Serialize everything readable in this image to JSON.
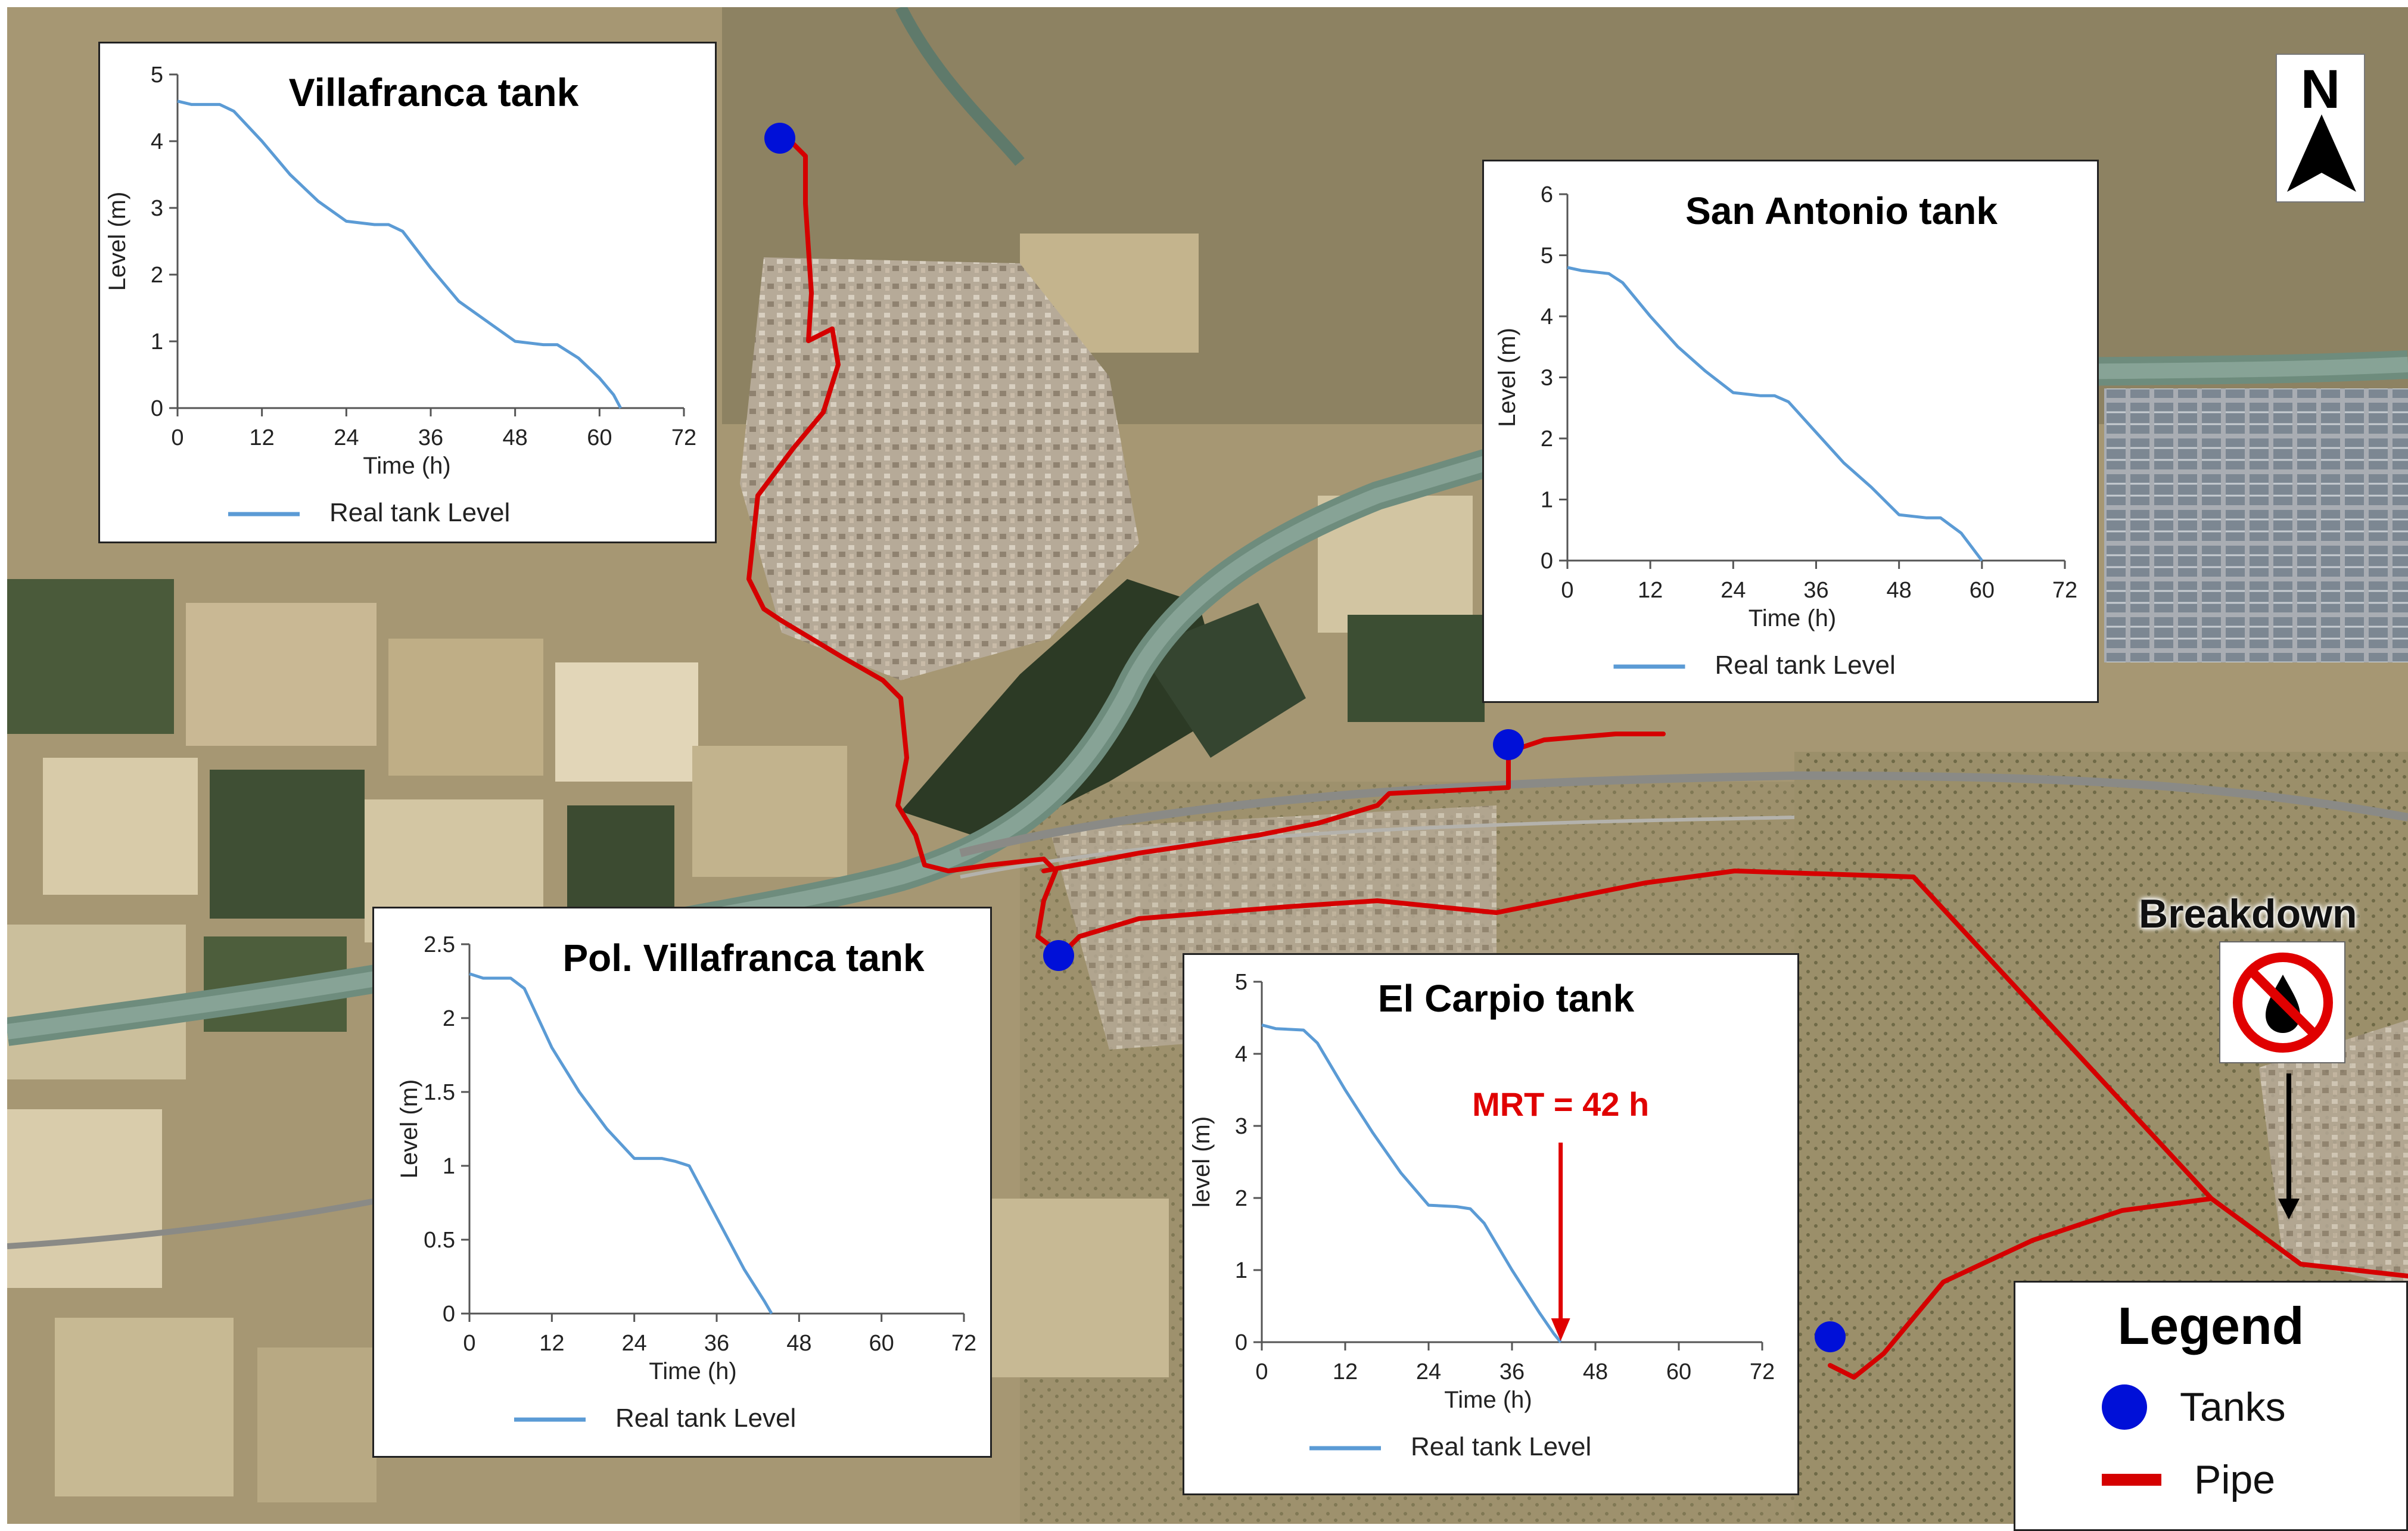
{
  "legend": {
    "title": "Legend",
    "tanks_label": "Tanks",
    "pipe_label": "Pipe",
    "tank_color": "#0010d8",
    "pipe_color": "#d50000"
  },
  "north_arrow": {
    "label": "N"
  },
  "breakdown": {
    "label": "Breakdown",
    "icon": "no-water-drop-icon"
  },
  "charts": [
    {
      "title": "Villafranca tank",
      "ylabel": "Level (m)",
      "xlabel": "Time (h)",
      "legend": "Real tank Level",
      "xticks": [
        "0",
        "12",
        "24",
        "36",
        "48",
        "60",
        "72"
      ],
      "yticks": [
        "0",
        "1",
        "2",
        "3",
        "4",
        "5"
      ]
    },
    {
      "title": "San Antonio tank",
      "ylabel": "Level (m)",
      "xlabel": "Time (h)",
      "legend": "Real tank Level",
      "xticks": [
        "0",
        "12",
        "24",
        "36",
        "48",
        "60",
        "72"
      ],
      "yticks": [
        "0",
        "1",
        "2",
        "3",
        "4",
        "5",
        "6"
      ]
    },
    {
      "title": "Pol. Villafranca tank",
      "ylabel": "Level (m)",
      "xlabel": "Time (h)",
      "legend": "Real tank Level",
      "xticks": [
        "0",
        "12",
        "24",
        "36",
        "48",
        "60",
        "72"
      ],
      "yticks": [
        "0",
        "0.5",
        "1",
        "1.5",
        "2",
        "2.5"
      ]
    },
    {
      "title": "El Carpio tank",
      "ylabel": "level (m)",
      "xlabel": "Time (h)",
      "legend": "Real tank Level",
      "xticks": [
        "0",
        "12",
        "24",
        "36",
        "48",
        "60",
        "72"
      ],
      "yticks": [
        "0",
        "1",
        "2",
        "3",
        "4",
        "5"
      ],
      "annotation": "MRT = 42 h"
    }
  ],
  "chart_data": [
    {
      "type": "line",
      "title": "Villafranca tank",
      "xlabel": "Time (h)",
      "ylabel": "Level (m)",
      "xlim": [
        0,
        72
      ],
      "ylim": [
        0,
        5
      ],
      "grid": false,
      "legend_placement": "bottom",
      "series": [
        {
          "name": "Real tank Level",
          "color": "#5b9bd5",
          "x": [
            0,
            2,
            6,
            8,
            12,
            16,
            20,
            24,
            28,
            30,
            32,
            36,
            40,
            44,
            48,
            52,
            54,
            57,
            60,
            62,
            63
          ],
          "y": [
            4.6,
            4.55,
            4.55,
            4.45,
            4.0,
            3.5,
            3.1,
            2.8,
            2.75,
            2.75,
            2.65,
            2.1,
            1.6,
            1.3,
            1.0,
            0.95,
            0.95,
            0.75,
            0.45,
            0.2,
            0.0
          ]
        }
      ]
    },
    {
      "type": "line",
      "title": "San Antonio tank",
      "xlabel": "Time (h)",
      "ylabel": "Level (m)",
      "xlim": [
        0,
        72
      ],
      "ylim": [
        0,
        6
      ],
      "grid": false,
      "legend_placement": "bottom",
      "series": [
        {
          "name": "Real tank Level",
          "color": "#5b9bd5",
          "x": [
            0,
            2,
            6,
            8,
            12,
            16,
            20,
            24,
            28,
            30,
            32,
            36,
            40,
            44,
            48,
            52,
            54,
            57,
            60
          ],
          "y": [
            4.8,
            4.75,
            4.7,
            4.55,
            4.0,
            3.5,
            3.1,
            2.75,
            2.7,
            2.7,
            2.6,
            2.1,
            1.6,
            1.2,
            0.75,
            0.7,
            0.7,
            0.45,
            0.0
          ]
        }
      ]
    },
    {
      "type": "line",
      "title": "Pol. Villafranca tank",
      "xlabel": "Time (h)",
      "ylabel": "Level (m)",
      "xlim": [
        0,
        72
      ],
      "ylim": [
        0,
        2.5
      ],
      "grid": false,
      "legend_placement": "bottom",
      "series": [
        {
          "name": "Real tank Level",
          "color": "#5b9bd5",
          "x": [
            0,
            2,
            6,
            8,
            12,
            16,
            20,
            24,
            28,
            30,
            32,
            36,
            40,
            43,
            44
          ],
          "y": [
            2.3,
            2.27,
            2.27,
            2.2,
            1.8,
            1.5,
            1.25,
            1.05,
            1.05,
            1.03,
            1.0,
            0.65,
            0.3,
            0.08,
            0.0
          ]
        }
      ]
    },
    {
      "type": "line",
      "title": "El Carpio tank",
      "xlabel": "Time (h)",
      "ylabel": "level (m)",
      "xlim": [
        0,
        72
      ],
      "ylim": [
        0,
        5
      ],
      "grid": false,
      "legend_placement": "bottom",
      "annotation": {
        "text": "MRT = 42 h",
        "x": 43,
        "color": "#e00000"
      },
      "series": [
        {
          "name": "Real tank Level",
          "color": "#5b9bd5",
          "x": [
            0,
            2,
            6,
            8,
            12,
            16,
            20,
            24,
            28,
            30,
            32,
            36,
            40,
            42,
            43
          ],
          "y": [
            4.4,
            4.35,
            4.33,
            4.15,
            3.5,
            2.9,
            2.35,
            1.9,
            1.88,
            1.85,
            1.65,
            1.0,
            0.4,
            0.12,
            0.0
          ]
        }
      ]
    }
  ]
}
